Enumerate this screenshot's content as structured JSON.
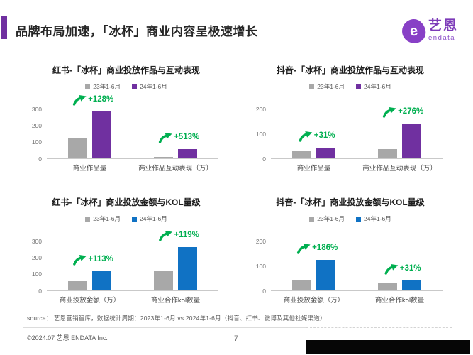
{
  "header": {
    "title": "品牌布局加速，「冰杯」商业内容呈极速增长",
    "logo": {
      "icon_letter": "e",
      "name_cn": "艺恩",
      "name_en": "endata"
    }
  },
  "colors": {
    "accent_purple": "#7030A0",
    "series_purple": "#7030A0",
    "series_blue": "#1072C4",
    "series_gray": "#A8A8A8",
    "growth_green": "#00AF50",
    "brand_purple": "#8840C6"
  },
  "chart_data": [
    {
      "type": "bar",
      "title": "红书-「冰杯」商业投放作品与互动表现",
      "categories": [
        "商业作品量",
        "商业作品互动表现（万）"
      ],
      "series": [
        {
          "name": "23年1-6月",
          "color": "#A8A8A8",
          "values": [
            125,
            9
          ]
        },
        {
          "name": "24年1-6月",
          "color": "#7030A0",
          "values": [
            285,
            55
          ]
        }
      ],
      "growth_labels": [
        "+128%",
        "+513%"
      ],
      "ylim": [
        0,
        300
      ],
      "yticks": [
        0,
        100,
        200,
        300
      ],
      "legend_position": "top",
      "grid": false
    },
    {
      "type": "bar",
      "title": "抖音-「冰杯」商业投放作品与互动表现",
      "categories": [
        "商业作品量",
        "商业作品互动表现（万）"
      ],
      "series": [
        {
          "name": "23年1-6月",
          "color": "#A8A8A8",
          "values": [
            32,
            37
          ]
        },
        {
          "name": "24年1-6月",
          "color": "#7030A0",
          "values": [
            42,
            139
          ]
        }
      ],
      "growth_labels": [
        "+31%",
        "+276%"
      ],
      "ylim": [
        0,
        200
      ],
      "yticks": [
        0,
        100,
        200
      ],
      "legend_position": "top",
      "grid": false
    },
    {
      "type": "bar",
      "title": "红书-「冰杯」商业投放金额与KOL量级",
      "categories": [
        "商业投放金额（万）",
        "商业合作kol数量"
      ],
      "series": [
        {
          "name": "23年1-6月",
          "color": "#A8A8A8",
          "values": [
            55,
            120
          ]
        },
        {
          "name": "24年1-6月",
          "color": "#1072C4",
          "values": [
            117,
            263
          ]
        }
      ],
      "growth_labels": [
        "+113%",
        "+119%"
      ],
      "ylim": [
        0,
        300
      ],
      "yticks": [
        0,
        100,
        200,
        300
      ],
      "legend_position": "top",
      "grid": false
    },
    {
      "type": "bar",
      "title": "抖音-「冰杯」商业投放金额与KOL量级",
      "categories": [
        "商业投放金额（万）",
        "商业合作kol数量"
      ],
      "series": [
        {
          "name": "23年1-6月",
          "color": "#A8A8A8",
          "values": [
            43,
            30
          ]
        },
        {
          "name": "24年1-6月",
          "color": "#1072C4",
          "values": [
            123,
            39
          ]
        }
      ],
      "growth_labels": [
        "+186%",
        "+31%"
      ],
      "ylim": [
        0,
        200
      ],
      "yticks": [
        0,
        100,
        200
      ],
      "legend_position": "top",
      "grid": false
    }
  ],
  "footer": {
    "source": "source： 艺恩营销智库，数据统计周期：2023年1-6月 vs 2024年1-6月（抖音、红书、微博及其他社媒渠道）",
    "copyright": "©2024.07 艺恩 ENDATA Inc.",
    "page_number": "7"
  }
}
